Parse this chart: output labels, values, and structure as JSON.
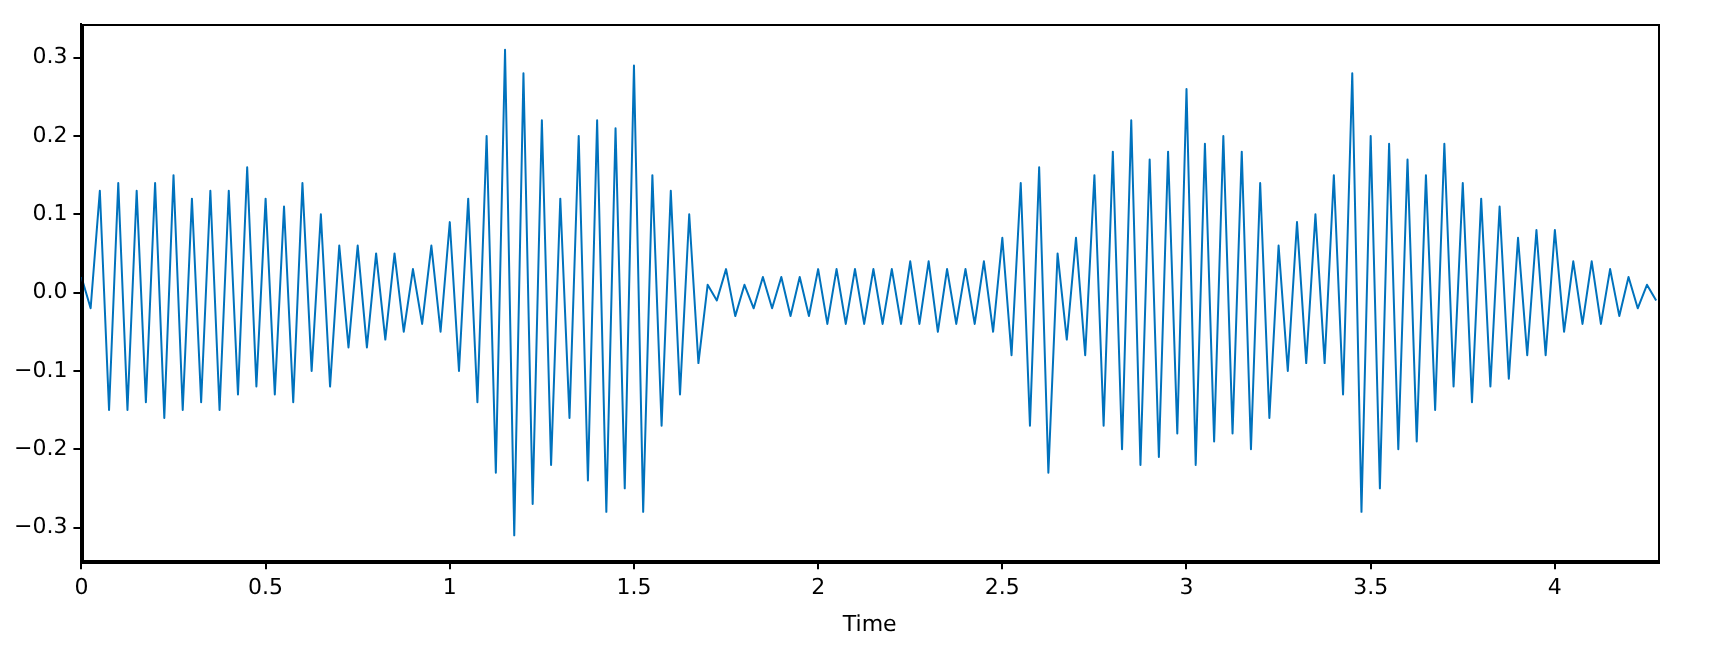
{
  "chart_data": {
    "type": "line",
    "xlabel": "Time",
    "xlim": [
      0,
      4.28
    ],
    "ylim": [
      -0.343,
      0.343
    ],
    "xticks": [
      0,
      0.5,
      1,
      1.5,
      2,
      2.5,
      3,
      3.5,
      4
    ],
    "yticks": [
      {
        "value": -0.3,
        "label": "−0.3"
      },
      {
        "value": -0.2,
        "label": "−0.2"
      },
      {
        "value": -0.1,
        "label": "−0.1"
      },
      {
        "value": 0,
        "label": "0.0"
      },
      {
        "value": 0.1,
        "label": "0.1"
      },
      {
        "value": 0.2,
        "label": "0.2"
      },
      {
        "value": 0.3,
        "label": "0.3"
      }
    ],
    "grid": false,
    "legend": false,
    "series": [
      {
        "color": "#0072bd",
        "x": [
          0,
          0.025,
          0.05,
          0.075,
          0.1,
          0.125,
          0.15,
          0.175,
          0.2,
          0.225,
          0.25,
          0.275,
          0.3,
          0.325,
          0.35,
          0.375,
          0.4,
          0.425,
          0.45,
          0.475,
          0.5,
          0.525,
          0.55,
          0.575,
          0.6,
          0.625,
          0.65,
          0.675,
          0.7,
          0.725,
          0.75,
          0.775,
          0.8,
          0.825,
          0.85,
          0.875,
          0.9,
          0.925,
          0.95,
          0.975,
          1,
          1.025,
          1.05,
          1.075,
          1.1,
          1.125,
          1.15,
          1.175,
          1.2,
          1.225,
          1.25,
          1.275,
          1.3,
          1.325,
          1.35,
          1.375,
          1.4,
          1.425,
          1.45,
          1.475,
          1.5,
          1.525,
          1.55,
          1.575,
          1.6,
          1.625,
          1.65,
          1.675,
          1.7,
          1.725,
          1.75,
          1.775,
          1.8,
          1.825,
          1.85,
          1.875,
          1.9,
          1.925,
          1.95,
          1.975,
          2,
          2.025,
          2.05,
          2.075,
          2.1,
          2.125,
          2.15,
          2.175,
          2.2,
          2.225,
          2.25,
          2.275,
          2.3,
          2.325,
          2.35,
          2.375,
          2.4,
          2.425,
          2.45,
          2.475,
          2.5,
          2.525,
          2.55,
          2.575,
          2.6,
          2.625,
          2.65,
          2.675,
          2.7,
          2.725,
          2.75,
          2.775,
          2.8,
          2.825,
          2.85,
          2.875,
          2.9,
          2.925,
          2.95,
          2.975,
          3,
          3.025,
          3.05,
          3.075,
          3.1,
          3.125,
          3.15,
          3.175,
          3.2,
          3.225,
          3.25,
          3.275,
          3.3,
          3.325,
          3.35,
          3.375,
          3.4,
          3.425,
          3.45,
          3.475,
          3.5,
          3.525,
          3.55,
          3.575,
          3.6,
          3.625,
          3.65,
          3.675,
          3.7,
          3.725,
          3.75,
          3.775,
          3.8,
          3.825,
          3.85,
          3.875,
          3.9,
          3.925,
          3.95,
          3.975,
          4,
          4.025,
          4.05,
          4.075,
          4.1,
          4.125,
          4.15,
          4.175,
          4.2,
          4.225,
          4.25,
          4.275
        ],
        "values": [
          0.02,
          -0.02,
          0.13,
          -0.15,
          0.14,
          -0.15,
          0.13,
          -0.14,
          0.14,
          -0.16,
          0.15,
          -0.15,
          0.12,
          -0.14,
          0.13,
          -0.15,
          0.13,
          -0.13,
          0.16,
          -0.12,
          0.12,
          -0.13,
          0.11,
          -0.14,
          0.14,
          -0.1,
          0.1,
          -0.12,
          0.06,
          -0.07,
          0.06,
          -0.07,
          0.05,
          -0.06,
          0.05,
          -0.05,
          0.03,
          -0.04,
          0.06,
          -0.05,
          0.09,
          -0.1,
          0.12,
          -0.14,
          0.2,
          -0.23,
          0.31,
          -0.31,
          0.28,
          -0.27,
          0.22,
          -0.22,
          0.12,
          -0.16,
          0.2,
          -0.24,
          0.22,
          -0.28,
          0.21,
          -0.25,
          0.29,
          -0.28,
          0.15,
          -0.17,
          0.13,
          -0.13,
          0.1,
          -0.09,
          0.01,
          -0.01,
          0.03,
          -0.03,
          0.01,
          -0.02,
          0.02,
          -0.02,
          0.02,
          -0.03,
          0.02,
          -0.03,
          0.03,
          -0.04,
          0.03,
          -0.04,
          0.03,
          -0.04,
          0.03,
          -0.04,
          0.03,
          -0.04,
          0.04,
          -0.04,
          0.04,
          -0.05,
          0.03,
          -0.04,
          0.03,
          -0.04,
          0.04,
          -0.05,
          0.07,
          -0.08,
          0.14,
          -0.17,
          0.16,
          -0.23,
          0.05,
          -0.06,
          0.07,
          -0.08,
          0.15,
          -0.17,
          0.18,
          -0.2,
          0.22,
          -0.22,
          0.17,
          -0.21,
          0.18,
          -0.18,
          0.26,
          -0.22,
          0.19,
          -0.19,
          0.2,
          -0.18,
          0.18,
          -0.2,
          0.14,
          -0.16,
          0.06,
          -0.1,
          0.09,
          -0.09,
          0.1,
          -0.09,
          0.15,
          -0.13,
          0.28,
          -0.28,
          0.2,
          -0.25,
          0.19,
          -0.2,
          0.17,
          -0.19,
          0.15,
          -0.15,
          0.19,
          -0.12,
          0.14,
          -0.14,
          0.12,
          -0.12,
          0.11,
          -0.11,
          0.07,
          -0.08,
          0.08,
          -0.08,
          0.08,
          -0.05,
          0.04,
          -0.04,
          0.04,
          -0.04,
          0.03,
          -0.03,
          0.02,
          -0.02,
          0.01,
          -0.01
        ]
      }
    ]
  }
}
